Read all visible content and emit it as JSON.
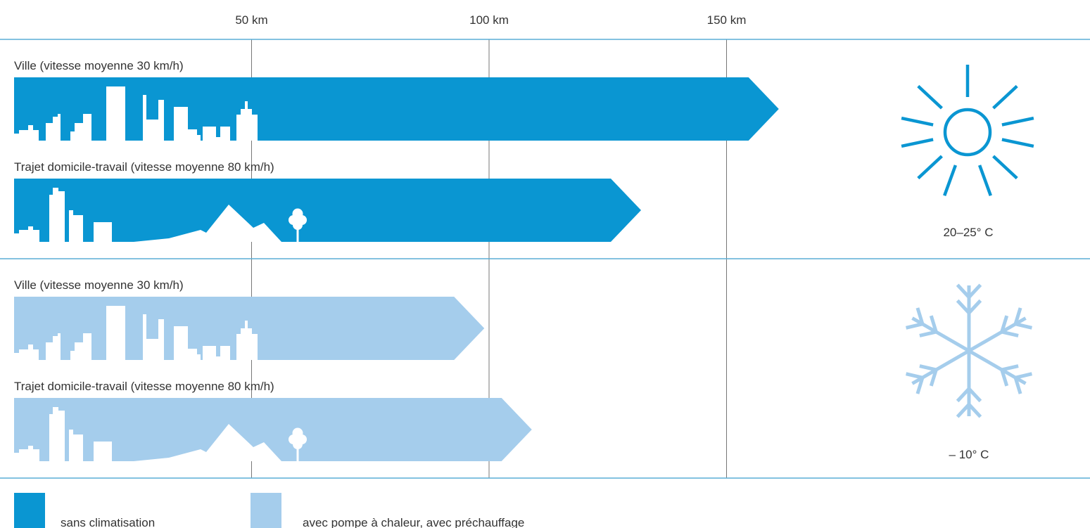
{
  "chart_data": {
    "type": "bar",
    "orientation": "horizontal",
    "x_unit": "km",
    "xlim": [
      0,
      190
    ],
    "ticks": [
      {
        "value": 50,
        "label": "50 km"
      },
      {
        "value": 100,
        "label": "100 km"
      },
      {
        "value": 150,
        "label": "150 km"
      }
    ],
    "grid": true,
    "series": [
      {
        "name": "sans climatisation",
        "color": "#0a96d2"
      },
      {
        "name": "avec pompe à chaleur, avec préchauffage",
        "color": "#a5cdec"
      }
    ],
    "groups": [
      {
        "temperature": "20–25° C",
        "icon": "sun-icon",
        "bars": [
          {
            "label": "Ville (vitesse moyenne 30 km/h)",
            "value": 161,
            "series": 0,
            "scene": "city"
          },
          {
            "label": "Trajet domicile-travail (vitesse moyenne 80 km/h)",
            "value": 132,
            "series": 0,
            "scene": "commute"
          }
        ]
      },
      {
        "temperature": "– 10° C",
        "icon": "snowflake-icon",
        "bars": [
          {
            "label": "Ville (vitesse moyenne 30 km/h)",
            "value": 99,
            "series": 1,
            "scene": "city"
          },
          {
            "label": "Trajet domicile-travail (vitesse moyenne 80 km/h)",
            "value": 109,
            "series": 1,
            "scene": "commute"
          }
        ]
      }
    ],
    "legend_position": "bottom-left"
  },
  "colors": {
    "rule": "#5aaed6",
    "grid": "#777777",
    "text": "#333333"
  }
}
